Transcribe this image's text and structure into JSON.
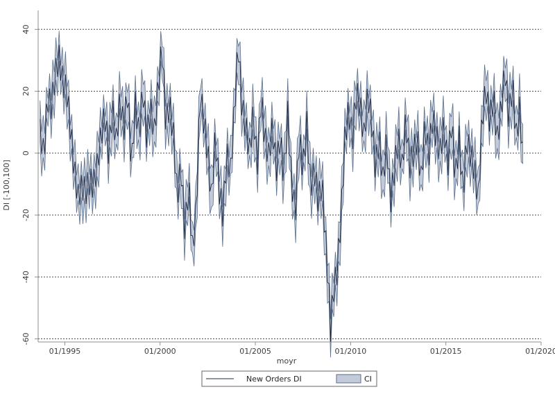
{
  "chart_data": {
    "type": "line",
    "xlabel": "moyr",
    "ylabel": "DI [-100,100]",
    "xlim": [
      1993.6,
      2020.0
    ],
    "ylim": [
      -61,
      45
    ],
    "x_ticks": [
      {
        "value": 1995,
        "label": "01/1995"
      },
      {
        "value": 2000,
        "label": "01/2000"
      },
      {
        "value": 2005,
        "label": "01/2005"
      },
      {
        "value": 2010,
        "label": "01/2010"
      },
      {
        "value": 2015,
        "label": "01/2015"
      },
      {
        "value": 2020,
        "label": "01/2020"
      }
    ],
    "y_ticks": [
      {
        "value": 40,
        "label": "40"
      },
      {
        "value": 20,
        "label": "20"
      },
      {
        "value": 0,
        "label": "0"
      },
      {
        "value": -20,
        "label": "-20"
      },
      {
        "value": -40,
        "label": "-40"
      },
      {
        "value": -60,
        "label": "-60"
      }
    ],
    "grid": "horizontal dotted",
    "legend_placement": "bottom-center",
    "legend": [
      {
        "label": "New Orders DI",
        "kind": "line"
      },
      {
        "label": "CI",
        "kind": "band"
      }
    ],
    "colors": {
      "line": "#1f2a44",
      "band_fill": "#c3cad9",
      "band_edge": "#5a6f8c",
      "grid": "#4a4a4a",
      "axis": "#8f8f8f"
    },
    "series": [
      {
        "name": "New Orders DI",
        "anchors": [
          [
            1993.7,
            8
          ],
          [
            1993.9,
            0
          ],
          [
            1994.1,
            18
          ],
          [
            1994.3,
            15
          ],
          [
            1994.5,
            25
          ],
          [
            1994.7,
            30
          ],
          [
            1994.9,
            22
          ],
          [
            1995.1,
            20
          ],
          [
            1995.3,
            8
          ],
          [
            1995.5,
            -5
          ],
          [
            1995.7,
            -13
          ],
          [
            1995.9,
            -10
          ],
          [
            1996.1,
            -12
          ],
          [
            1996.3,
            -9
          ],
          [
            1996.5,
            -11
          ],
          [
            1996.7,
            -5
          ],
          [
            1996.9,
            5
          ],
          [
            1997.1,
            12
          ],
          [
            1997.3,
            0
          ],
          [
            1997.5,
            15
          ],
          [
            1997.7,
            5
          ],
          [
            1997.9,
            18
          ],
          [
            1998.1,
            8
          ],
          [
            1998.3,
            20
          ],
          [
            1998.5,
            -5
          ],
          [
            1998.7,
            15
          ],
          [
            1998.9,
            5
          ],
          [
            1999.1,
            20
          ],
          [
            1999.3,
            5
          ],
          [
            1999.5,
            15
          ],
          [
            1999.7,
            8
          ],
          [
            1999.9,
            22
          ],
          [
            2000.1,
            35
          ],
          [
            2000.3,
            10
          ],
          [
            2000.5,
            15
          ],
          [
            2000.7,
            5
          ],
          [
            2000.9,
            -15
          ],
          [
            2001.1,
            -5
          ],
          [
            2001.3,
            -25
          ],
          [
            2001.5,
            -10
          ],
          [
            2001.7,
            -30
          ],
          [
            2001.9,
            -18
          ],
          [
            2002.1,
            20
          ],
          [
            2002.3,
            10
          ],
          [
            2002.5,
            0
          ],
          [
            2002.7,
            -15
          ],
          [
            2002.9,
            5
          ],
          [
            2003.1,
            -12
          ],
          [
            2003.3,
            -20
          ],
          [
            2003.5,
            0
          ],
          [
            2003.7,
            -5
          ],
          [
            2003.9,
            15
          ],
          [
            2004.1,
            36
          ],
          [
            2004.3,
            15
          ],
          [
            2004.5,
            8
          ],
          [
            2004.7,
            0
          ],
          [
            2004.9,
            12
          ],
          [
            2005.1,
            -5
          ],
          [
            2005.3,
            18
          ],
          [
            2005.5,
            5
          ],
          [
            2005.7,
            0
          ],
          [
            2005.9,
            10
          ],
          [
            2006.1,
            -5
          ],
          [
            2006.3,
            5
          ],
          [
            2006.5,
            -8
          ],
          [
            2006.7,
            12
          ],
          [
            2006.9,
            -10
          ],
          [
            2007.1,
            -20
          ],
          [
            2007.3,
            5
          ],
          [
            2007.5,
            -5
          ],
          [
            2007.7,
            10
          ],
          [
            2007.9,
            -10
          ],
          [
            2008.1,
            -5
          ],
          [
            2008.3,
            -15
          ],
          [
            2008.5,
            -10
          ],
          [
            2008.7,
            -30
          ],
          [
            2008.85,
            -45
          ],
          [
            2008.95,
            -58
          ],
          [
            2009.1,
            -45
          ],
          [
            2009.3,
            -38
          ],
          [
            2009.5,
            -20
          ],
          [
            2009.7,
            5
          ],
          [
            2009.9,
            15
          ],
          [
            2010.1,
            5
          ],
          [
            2010.3,
            20
          ],
          [
            2010.5,
            15
          ],
          [
            2010.7,
            5
          ],
          [
            2010.9,
            18
          ],
          [
            2011.1,
            10
          ],
          [
            2011.3,
            -5
          ],
          [
            2011.5,
            5
          ],
          [
            2011.7,
            -8
          ],
          [
            2011.9,
            5
          ],
          [
            2012.1,
            -15
          ],
          [
            2012.3,
            -5
          ],
          [
            2012.5,
            5
          ],
          [
            2012.7,
            -5
          ],
          [
            2012.9,
            10
          ],
          [
            2013.1,
            -5
          ],
          [
            2013.3,
            0
          ],
          [
            2013.5,
            5
          ],
          [
            2013.7,
            -8
          ],
          [
            2013.9,
            10
          ],
          [
            2014.1,
            0
          ],
          [
            2014.3,
            12
          ],
          [
            2014.5,
            5
          ],
          [
            2014.7,
            0
          ],
          [
            2014.9,
            8
          ],
          [
            2015.1,
            -5
          ],
          [
            2015.3,
            10
          ],
          [
            2015.5,
            -8
          ],
          [
            2015.7,
            5
          ],
          [
            2015.9,
            -12
          ],
          [
            2016.1,
            5
          ],
          [
            2016.3,
            0
          ],
          [
            2016.5,
            -5
          ],
          [
            2016.7,
            -15
          ],
          [
            2016.9,
            10
          ],
          [
            2017.1,
            20
          ],
          [
            2017.3,
            10
          ],
          [
            2017.5,
            18
          ],
          [
            2017.7,
            5
          ],
          [
            2017.9,
            15
          ],
          [
            2018.1,
            28
          ],
          [
            2018.3,
            12
          ],
          [
            2018.5,
            22
          ],
          [
            2018.7,
            5
          ],
          [
            2018.9,
            15
          ],
          [
            2019.0,
            -2
          ],
          [
            2019.1,
            0
          ]
        ],
        "zigzag_amplitude": 5
      }
    ],
    "ci_half_width": 6
  },
  "legend": {
    "series_label": "New Orders DI",
    "ci_label": "CI"
  }
}
